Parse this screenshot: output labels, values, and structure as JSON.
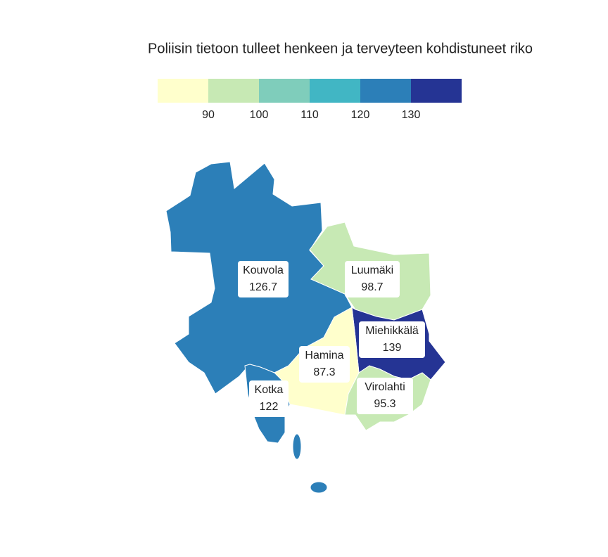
{
  "title": "Poliisin tietoon tulleet henkeen ja terveyteen kohdistuneet riko",
  "legend": {
    "colors": [
      "#ffffcc",
      "#c7e9b4",
      "#7fcdbb",
      "#41b6c4",
      "#2c7fb8",
      "#253494"
    ],
    "ticks": [
      90,
      100,
      110,
      120,
      130
    ]
  },
  "regions": [
    {
      "name": "Kouvola",
      "value": 126.7
    },
    {
      "name": "Luumäki",
      "value": 98.7
    },
    {
      "name": "Miehikkälä",
      "value": 139
    },
    {
      "name": "Hamina",
      "value": 87.3
    },
    {
      "name": "Virolahti",
      "value": 95.3
    },
    {
      "name": "Kotka",
      "value": 122
    }
  ]
}
